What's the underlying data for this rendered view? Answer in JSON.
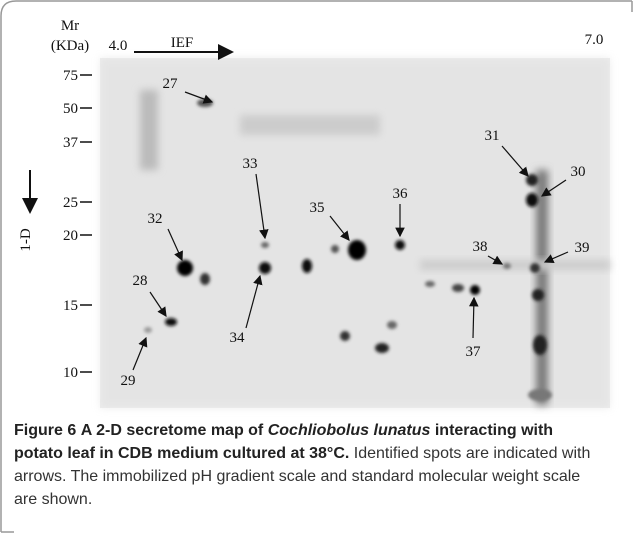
{
  "figure": {
    "axis": {
      "mr_label": "Mr",
      "mr_unit": "(KDa)",
      "ph_start": "4.0",
      "ph_end": "7.0",
      "ief": "IEF",
      "second_dim": "1-D",
      "mr_ticks": [
        "75",
        "50",
        "37",
        "25",
        "20",
        "15",
        "10"
      ]
    },
    "spots": [
      "27",
      "31",
      "30",
      "33",
      "36",
      "35",
      "32",
      "38",
      "39",
      "28",
      "34",
      "37",
      "29"
    ]
  },
  "caption": {
    "label": "Figure 6",
    "title": "A 2-D secretome map of",
    "organism": "Cochliobolus lunatus",
    "title_end": "interacting with potato leaf in CDB medium cultured at 38°C.",
    "text": "Identified spots are indicated with arrows. The immobilized pH gradient scale and standard molecular weight scale are shown."
  }
}
